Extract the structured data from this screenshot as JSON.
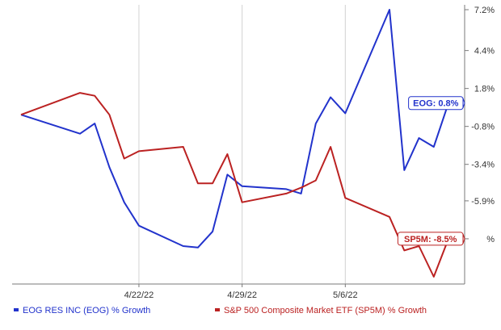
{
  "chart_data": {
    "type": "line",
    "x": [
      "2022-04-14",
      "2022-04-18",
      "2022-04-19",
      "2022-04-20",
      "2022-04-21",
      "2022-04-22",
      "2022-04-25",
      "2022-04-26",
      "2022-04-27",
      "2022-04-28",
      "2022-04-29",
      "2022-05-02",
      "2022-05-03",
      "2022-05-04",
      "2022-05-05",
      "2022-05-06",
      "2022-05-09",
      "2022-05-10",
      "2022-05-11",
      "2022-05-12",
      "2022-05-13"
    ],
    "x_tick_labels": [
      "4/22/22",
      "4/29/22",
      "5/6/22"
    ],
    "y_ticks": [
      7.2,
      4.4,
      1.8,
      -0.8,
      -3.4,
      -5.9,
      -8.5
    ],
    "y_tick_labels": [
      "7.2%",
      "4.4%",
      "1.8%",
      "-0.8%",
      "-3.4%",
      "-5.9%",
      "%"
    ],
    "ylim": [
      -11.6,
      7.2
    ],
    "series": [
      {
        "name": "EOG RES INC (EOG) % Growth",
        "color": "#2233cc",
        "values": [
          0,
          -1.3,
          -0.6,
          -3.6,
          -6.0,
          -7.6,
          -9.0,
          -9.1,
          -8.0,
          -4.1,
          -4.9,
          -5.1,
          -5.4,
          -0.6,
          1.2,
          0.1,
          7.2,
          -3.8,
          -1.6,
          -2.2,
          0.8
        ]
      },
      {
        "name": "S&P 500 Composite Market ETF (SP5M) % Growth",
        "color": "#bb2222",
        "values": [
          0,
          1.5,
          1.3,
          0,
          -3.0,
          -2.5,
          -2.2,
          -4.7,
          -4.7,
          -2.7,
          -6.0,
          -5.4,
          -5.0,
          -4.5,
          -2.2,
          -5.7,
          -7.0,
          -9.3,
          -9.0,
          -11.1,
          -8.5
        ]
      }
    ],
    "end_labels": [
      "EOG: 0.8%",
      "SP5M: -8.5%"
    ],
    "legend": {
      "position": "bottom",
      "entries": [
        "EOG RES INC (EOG) % Growth",
        "S&P 500 Composite Market ETF (SP5M) % Growth"
      ]
    },
    "grid": {
      "vertical": true,
      "horizontal": false
    }
  }
}
